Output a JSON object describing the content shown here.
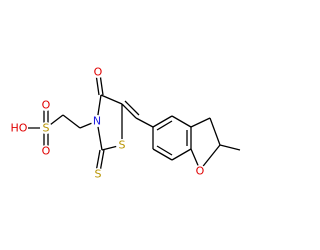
{
  "atoms": [
    {
      "label": "O"
    },
    {
      "label": "N"
    },
    {
      "label": "S"
    },
    {
      "label": "S"
    },
    {
      "label": "O"
    },
    {
      "label": "HO"
    },
    {
      "label": "S"
    },
    {
      "label": "O"
    },
    {
      "label": "O"
    }
  ]
}
